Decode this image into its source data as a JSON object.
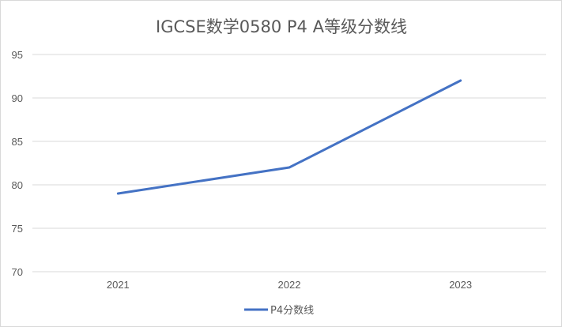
{
  "chart_data": {
    "type": "line",
    "title": "IGCSE数学0580 P4 A等级分数线",
    "categories": [
      "2021",
      "2022",
      "2023"
    ],
    "series": [
      {
        "name": "P4分数线",
        "values": [
          79,
          82,
          92
        ],
        "color": "#4472c4"
      }
    ],
    "ylim": [
      70,
      95
    ],
    "yticks": [
      70,
      75,
      80,
      85,
      90,
      95
    ],
    "grid": true,
    "legend_position": "bottom",
    "xlabel": "",
    "ylabel": ""
  }
}
